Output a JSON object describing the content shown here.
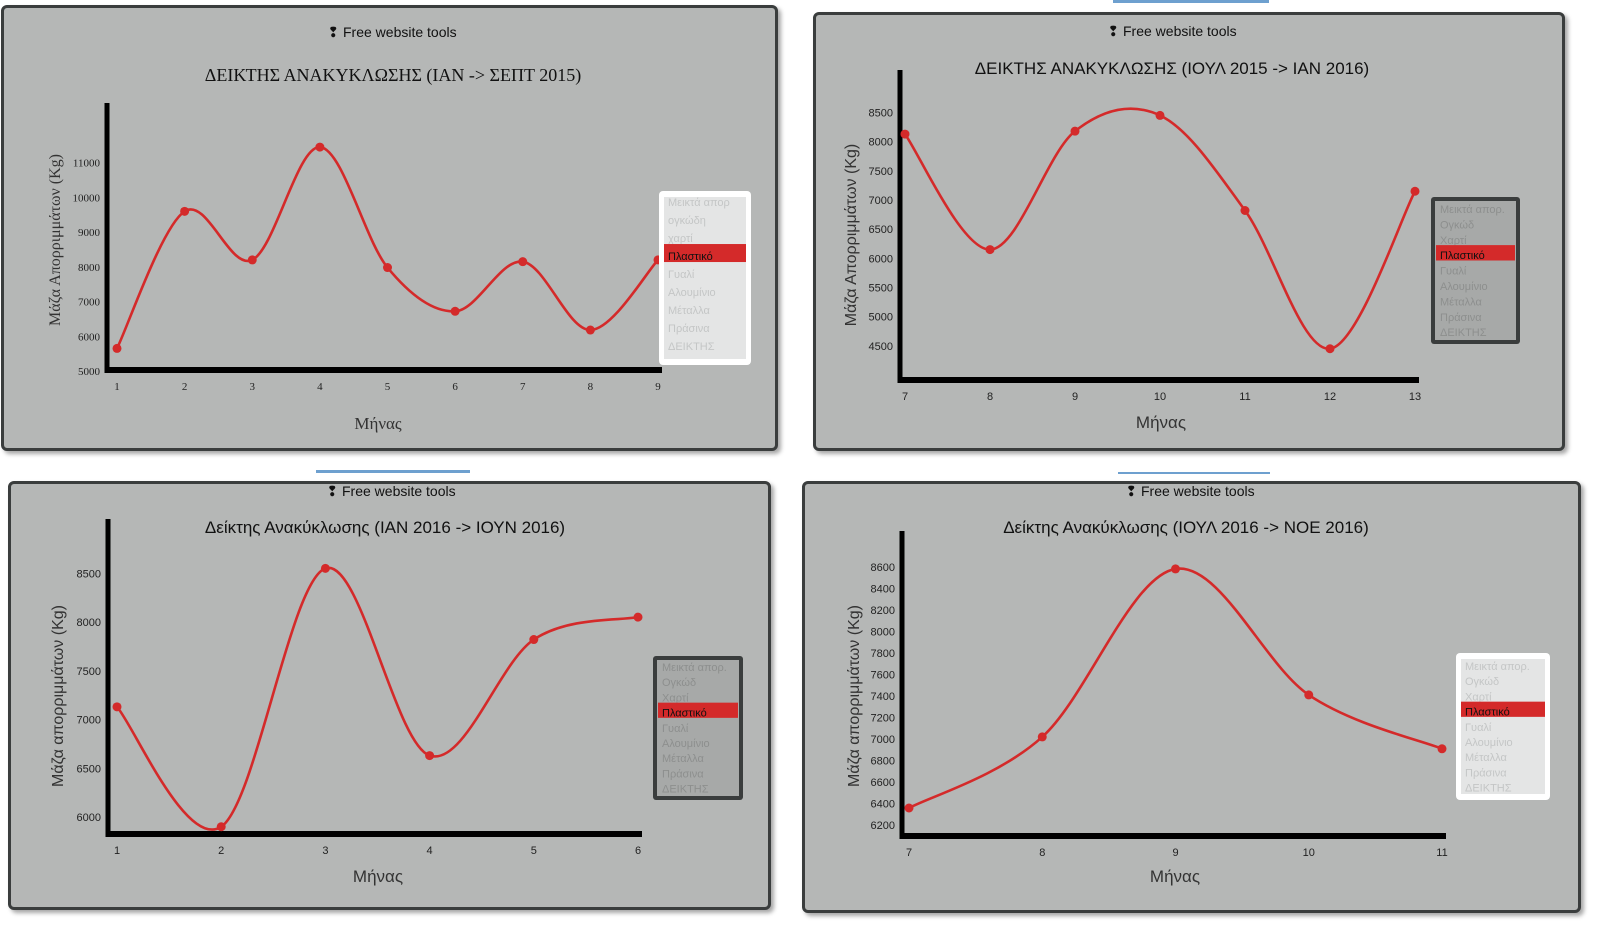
{
  "charts": [
    {
      "id": "p1",
      "brand": "Free website tools",
      "title": "ΔΕΙΚΤΗΣ ΑΝΑΚΥΚΛΩΣΗΣ (ΙΑΝ -> ΣΕΠΤ 2015)",
      "xlabel": "Μήνας",
      "ylabel": "Μάζα Απορριμμάτων (Kg)",
      "legend_items": [
        "Μεικτά απορ",
        "ογκώδη",
        "χαρτί",
        "Πλαστικό",
        "Γυαλί",
        "Αλουμίνιο",
        "Μέταλλα",
        "Πράσινα",
        "ΔΕΙΚΤΗΣ"
      ],
      "legend_selected": "Πλαστικό",
      "legend_theme": "light"
    },
    {
      "id": "p2",
      "brand": "Free website tools",
      "title": "ΔΕΙΚΤΗΣ ΑΝΑΚΥΚΛΩΣΗΣ (ΙΟΥΛ 2015 -> ΙΑΝ 2016)",
      "xlabel": "Μήνας",
      "ylabel": "Μάζα Απορριμμάτων (Kg)",
      "legend_items": [
        "Μεικτά απορ.",
        "Ογκώδ",
        "Χαρτί",
        "Πλαστικό",
        "Γυαλί",
        "Αλουμίνιο",
        "Μέταλλα",
        "Πράσινα",
        "ΔΕΙΚΤΗΣ"
      ],
      "legend_selected": "Πλαστικό",
      "legend_theme": "dark"
    },
    {
      "id": "p3",
      "brand": "Free website tools",
      "title": "Δείκτης Ανακύκλωσης (ΙΑΝ 2016 -> ΙΟΥΝ 2016)",
      "xlabel": "Μήνας",
      "ylabel": "Μάζα απορριμμάτων (Kg)",
      "legend_items": [
        "Μεικτά απορ.",
        "Ογκώδ",
        "Χαρτί",
        "Πλαστικό",
        "Γυαλί",
        "Αλουμίνιο",
        "Μέταλλα",
        "Πράσινα",
        "ΔΕΙΚΤΗΣ"
      ],
      "legend_selected": "Πλαστικό",
      "legend_theme": "dark"
    },
    {
      "id": "p4",
      "brand": "Free website tools",
      "title": "Δείκτης Ανακύκλωσης (ΙΟΥΛ 2016 -> ΝΟΕ 2016)",
      "xlabel": "Μήνας",
      "ylabel": "Μάζα απορριμμάτων (Kg)",
      "legend_items": [
        "Μεικτά απορ.",
        "Ογκώδ",
        "Χαρτί",
        "Πλαστικό",
        "Γυαλί",
        "Αλουμίνιο",
        "Μέταλλα",
        "Πράσινα",
        "ΔΕΙΚΤΗΣ"
      ],
      "legend_selected": "Πλαστικό",
      "legend_theme": "light"
    }
  ],
  "chart_data": [
    {
      "type": "line",
      "title": "ΔΕΙΚΤΗΣ ΑΝΑΚΥΚΛΩΣΗΣ (ΙΑΝ -> ΣΕΠΤ 2015)",
      "xlabel": "Μήνας",
      "ylabel": "Μάζα Απορριμμάτων (Kg)",
      "x": [
        1,
        2,
        3,
        4,
        5,
        6,
        7,
        8,
        9
      ],
      "series": [
        {
          "name": "Πλαστικό",
          "values": [
            5650,
            9600,
            8200,
            11450,
            7980,
            6720,
            8150,
            6180,
            8200
          ]
        }
      ],
      "xlim": [
        1,
        9
      ],
      "ylim": [
        5000,
        12000
      ],
      "yticks": [
        5000,
        6000,
        7000,
        8000,
        9000,
        10000,
        11000
      ],
      "legend": "right",
      "color": "#d42a2a"
    },
    {
      "type": "line",
      "title": "ΔΕΙΚΤΗΣ ΑΝΑΚΥΚΛΩΣΗΣ (ΙΟΥΛ 2015 -> ΙΑΝ 2016)",
      "xlabel": "Μήνας",
      "ylabel": "Μάζα Απορριμμάτων (Kg)",
      "x": [
        7,
        8,
        9,
        10,
        11,
        12,
        13
      ],
      "series": [
        {
          "name": "Πλαστικό",
          "values": [
            8130,
            6150,
            8180,
            8450,
            6820,
            4450,
            7150
          ]
        }
      ],
      "xlim": [
        7,
        13
      ],
      "ylim": [
        4000,
        8800
      ],
      "yticks": [
        4500,
        5000,
        5500,
        6000,
        6500,
        7000,
        7500,
        8000,
        8500
      ],
      "legend": "right",
      "color": "#d42a2a"
    },
    {
      "type": "line",
      "title": "Δείκτης Ανακύκλωσης (ΙΑΝ 2016 -> ΙΟΥΝ 2016)",
      "xlabel": "Μήνας",
      "ylabel": "Μάζα απορριμμάτων (Kg)",
      "x": [
        1,
        2,
        3,
        4,
        5,
        6
      ],
      "series": [
        {
          "name": "Πλαστικό",
          "values": [
            7130,
            5900,
            8550,
            6630,
            7820,
            8050
          ]
        }
      ],
      "xlim": [
        1,
        6
      ],
      "ylim": [
        5600,
        8800
      ],
      "yticks": [
        6000,
        6500,
        7000,
        7500,
        8000,
        8500
      ],
      "legend": "right",
      "color": "#d42a2a"
    },
    {
      "type": "line",
      "title": "Δείκτης Ανακύκλωσης (ΙΟΥΛ 2016 -> ΝΟΕ 2016)",
      "xlabel": "Μήνας",
      "ylabel": "Μάζα απορριμμάτων (Kg)",
      "x": [
        7,
        8,
        9,
        10,
        11
      ],
      "series": [
        {
          "name": "Πλαστικό",
          "values": [
            6360,
            7020,
            8580,
            7410,
            6910
          ]
        }
      ],
      "xlim": [
        7,
        11
      ],
      "ylim": [
        6100,
        8700
      ],
      "yticks": [
        6200,
        6400,
        6600,
        6800,
        7000,
        7200,
        7400,
        7600,
        7800,
        8000,
        8200,
        8400,
        8600
      ],
      "legend": "right",
      "color": "#d42a2a"
    }
  ]
}
